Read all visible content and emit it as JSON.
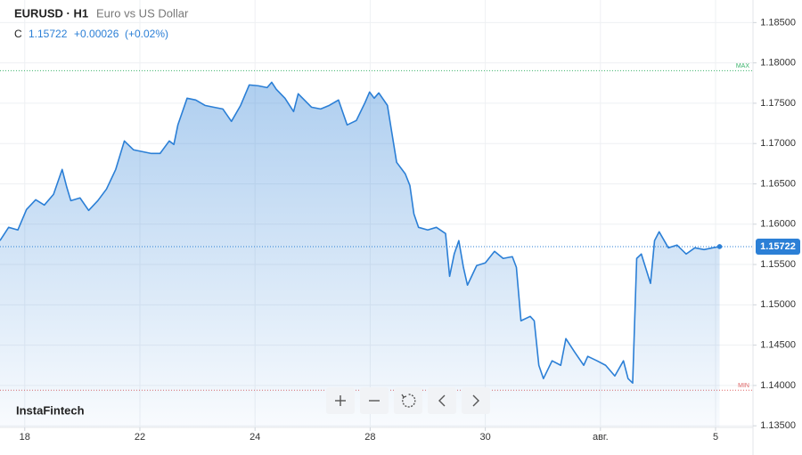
{
  "chart_data": {
    "type": "area",
    "symbol": "EURUSD · H1",
    "subtitle": "Euro vs US Dollar",
    "quote": {
      "label": "C",
      "change": "+0.00026",
      "change_pct": "(+0.02%)"
    },
    "brand": "InstaFintech",
    "color": "#2b7fd6",
    "grid": true,
    "xlim": [
      -0.43,
      12.65
    ],
    "ylim": [
      1.1348,
      1.1878
    ],
    "xticks": [
      {
        "value": 0,
        "label": "18"
      },
      {
        "value": 2,
        "label": "22"
      },
      {
        "value": 4,
        "label": "24"
      },
      {
        "value": 6,
        "label": "28"
      },
      {
        "value": 8,
        "label": "30"
      },
      {
        "value": 10,
        "label": "авг."
      },
      {
        "value": 12,
        "label": "5"
      }
    ],
    "yticks": [
      {
        "value": 1.185,
        "label": "1.18500"
      },
      {
        "value": 1.18,
        "label": "1.18000"
      },
      {
        "value": 1.175,
        "label": "1.17500"
      },
      {
        "value": 1.17,
        "label": "1.17000"
      },
      {
        "value": 1.165,
        "label": "1.16500"
      },
      {
        "value": 1.16,
        "label": "1.16000"
      },
      {
        "value": 1.155,
        "label": "1.15500"
      },
      {
        "value": 1.15,
        "label": "1.15000"
      },
      {
        "value": 1.145,
        "label": "1.14500"
      },
      {
        "value": 1.14,
        "label": "1.14000"
      },
      {
        "value": 1.135,
        "label": "1.13500"
      }
    ],
    "max_line": {
      "value": 1.17904,
      "label": "MAX",
      "color": "#3bb36b"
    },
    "min_line": {
      "value": 1.13941,
      "label": "MIN",
      "color": "#e06666"
    },
    "last_price": {
      "value": 1.15722,
      "label": "1.15722"
    },
    "x": [
      -0.43,
      -0.28,
      -0.12,
      0.03,
      0.19,
      0.34,
      0.5,
      0.65,
      0.73,
      0.8,
      0.96,
      1.11,
      1.27,
      1.42,
      1.58,
      1.73,
      1.89,
      2.04,
      2.2,
      2.35,
      2.51,
      2.59,
      2.66,
      2.82,
      2.97,
      3.13,
      3.28,
      3.44,
      3.59,
      3.75,
      3.9,
      4.06,
      4.21,
      4.29,
      4.37,
      4.52,
      4.67,
      4.75,
      4.98,
      5.14,
      5.29,
      5.45,
      5.6,
      5.76,
      5.91,
      5.99,
      6.07,
      6.15,
      6.3,
      6.38,
      6.46,
      6.61,
      6.69,
      6.76,
      6.84,
      7.0,
      7.15,
      7.31,
      7.38,
      7.46,
      7.54,
      7.62,
      7.69,
      7.85,
      8.0,
      8.16,
      8.31,
      8.47,
      8.54,
      8.62,
      8.78,
      8.85,
      8.93,
      9.01,
      9.16,
      9.31,
      9.4,
      9.55,
      9.71,
      9.78,
      9.94,
      10.09,
      10.25,
      10.4,
      10.48,
      10.56,
      10.63,
      10.71,
      10.87,
      10.94,
      11.02,
      11.18,
      11.33,
      11.49,
      11.64,
      11.8,
      11.95,
      12.07
    ],
    "series": [
      {
        "name": "EURUSD",
        "color": "#2b7fd6",
        "values": [
          1.15796,
          1.15961,
          1.15928,
          1.16182,
          1.16303,
          1.16237,
          1.1637,
          1.16679,
          1.16458,
          1.16292,
          1.16326,
          1.16171,
          1.16292,
          1.16436,
          1.16679,
          1.17032,
          1.16922,
          1.169,
          1.16877,
          1.16877,
          1.17032,
          1.16988,
          1.17231,
          1.17562,
          1.1754,
          1.17473,
          1.17451,
          1.17429,
          1.17275,
          1.17473,
          1.17727,
          1.17716,
          1.17694,
          1.1776,
          1.17672,
          1.17562,
          1.17396,
          1.17617,
          1.17451,
          1.17429,
          1.17473,
          1.1754,
          1.17231,
          1.17286,
          1.17507,
          1.17639,
          1.17562,
          1.17628,
          1.17473,
          1.1712,
          1.16767,
          1.16624,
          1.1648,
          1.16127,
          1.15961,
          1.15928,
          1.15961,
          1.15884,
          1.15354,
          1.1563,
          1.15796,
          1.15465,
          1.15244,
          1.15487,
          1.1552,
          1.15663,
          1.15575,
          1.15597,
          1.15465,
          1.14802,
          1.14857,
          1.14802,
          1.1425,
          1.14085,
          1.14306,
          1.1425,
          1.14581,
          1.14416,
          1.1425,
          1.14361,
          1.14306,
          1.1425,
          1.14118,
          1.14306,
          1.14085,
          1.1403,
          1.15575,
          1.1563,
          1.15266,
          1.15796,
          1.15906,
          1.15707,
          1.15741,
          1.1563,
          1.15707,
          1.15685,
          1.15707,
          1.15722
        ]
      }
    ]
  }
}
